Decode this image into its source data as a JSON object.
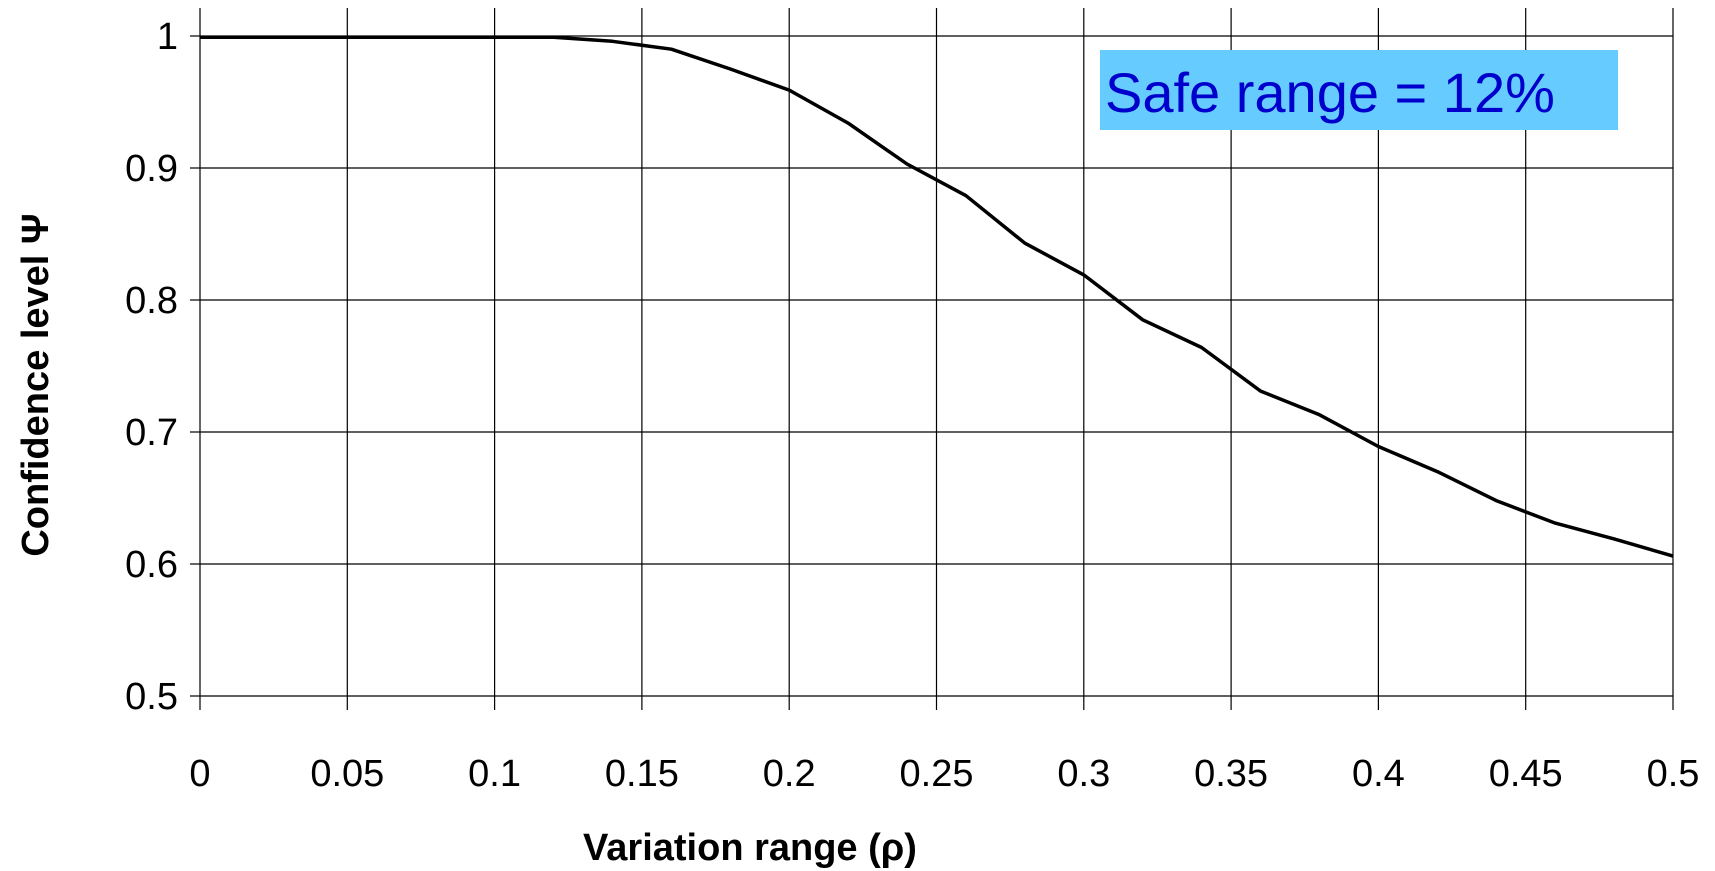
{
  "chart_data": {
    "type": "line",
    "title": "",
    "xlabel": "Variation range (ρ)",
    "ylabel": "Confidence level Ψ",
    "xlim": [
      0,
      0.5
    ],
    "ylim": [
      0.5,
      1.0
    ],
    "x_ticks": [
      "0",
      "0.05",
      "0.1",
      "0.15",
      "0.2",
      "0.25",
      "0.3",
      "0.35",
      "0.4",
      "0.45",
      "0.5"
    ],
    "y_ticks": [
      "0.5",
      "0.6",
      "0.7",
      "0.8",
      "0.9",
      "1"
    ],
    "grid": true,
    "legend": "none",
    "series": [
      {
        "x": [
          0,
          0.02,
          0.04,
          0.06,
          0.08,
          0.1,
          0.12,
          0.14,
          0.16,
          0.18,
          0.2,
          0.22,
          0.24,
          0.26,
          0.28,
          0.3,
          0.32,
          0.34,
          0.36,
          0.38,
          0.4,
          0.42,
          0.44,
          0.46,
          0.48,
          0.5
        ],
        "values": [
          0.999,
          0.999,
          0.999,
          0.999,
          0.999,
          0.999,
          0.999,
          0.996,
          0.99,
          0.975,
          0.959,
          0.934,
          0.903,
          0.879,
          0.843,
          0.819,
          0.785,
          0.764,
          0.731,
          0.713,
          0.689,
          0.67,
          0.648,
          0.631,
          0.619,
          0.606
        ],
        "color": "#000000"
      }
    ],
    "annotations": [
      {
        "text": "Safe range = 12%",
        "background": "#66ccff",
        "color": "#0000cc"
      }
    ]
  }
}
